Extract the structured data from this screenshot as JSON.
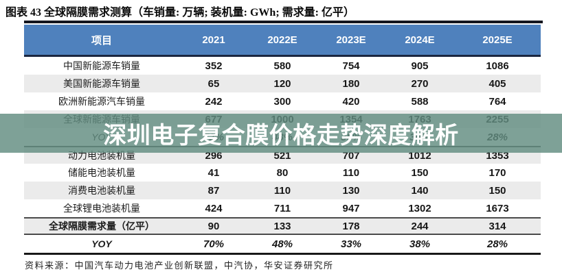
{
  "title": "图表 43 全球隔膜需求测算（车销量: 万辆; 装机量: GWh; 需求量: 亿平）",
  "watermark": "深圳电子复合膜价格走势深度解析",
  "source": "资料来源：中国汽车动力电池产业创新联盟，中汽协，华安证券研究所",
  "colors": {
    "header_bg": "#4f81bd",
    "header_text": "#ffffff",
    "stripe_row": "#ebebeb",
    "dark_rule": "#14161f",
    "overlay_band": "rgba(97,140,128,0.82)",
    "watermark_text": "#ffffff"
  },
  "table": {
    "columns": [
      "项目",
      "2021",
      "2022E",
      "2023E",
      "2024E",
      "2025E"
    ],
    "rows": [
      {
        "label": "中国新能源车销量",
        "values": [
          "352",
          "580",
          "754",
          "905",
          "1086"
        ]
      },
      {
        "label": "美国新能源车销量",
        "values": [
          "65",
          "120",
          "180",
          "270",
          "405"
        ]
      },
      {
        "label": "欧洲新能源汽车销量",
        "values": [
          "242",
          "300",
          "420",
          "588",
          "764"
        ]
      },
      {
        "label": "全球新能源车销量",
        "values": [
          "677",
          "1000",
          "1354",
          "1763",
          "2255"
        ]
      },
      {
        "label": "YOY",
        "values": [
          "72%",
          "48%",
          "35%",
          "30%",
          "28%"
        ],
        "italic": true
      },
      {
        "label": "动力电池装机量",
        "values": [
          "296",
          "521",
          "707",
          "1012",
          "1353"
        ],
        "rule_top": true
      },
      {
        "label": "储能电池装机量",
        "values": [
          "41",
          "80",
          "110",
          "150",
          "170"
        ]
      },
      {
        "label": "消费电池装机量",
        "values": [
          "87",
          "110",
          "130",
          "140",
          "150"
        ]
      },
      {
        "label": "全球锂电池装机量",
        "values": [
          "424",
          "711",
          "947",
          "1302",
          "1673"
        ]
      },
      {
        "label": "全球隔膜需求量（亿平）",
        "values": [
          "90",
          "133",
          "178",
          "244",
          "314"
        ],
        "bold": true,
        "rule_top": true,
        "rule_bottom": true
      },
      {
        "label": "YOY",
        "values": [
          "70%",
          "48%",
          "33%",
          "38%",
          "28%"
        ],
        "bold": true,
        "italic": true
      }
    ]
  }
}
